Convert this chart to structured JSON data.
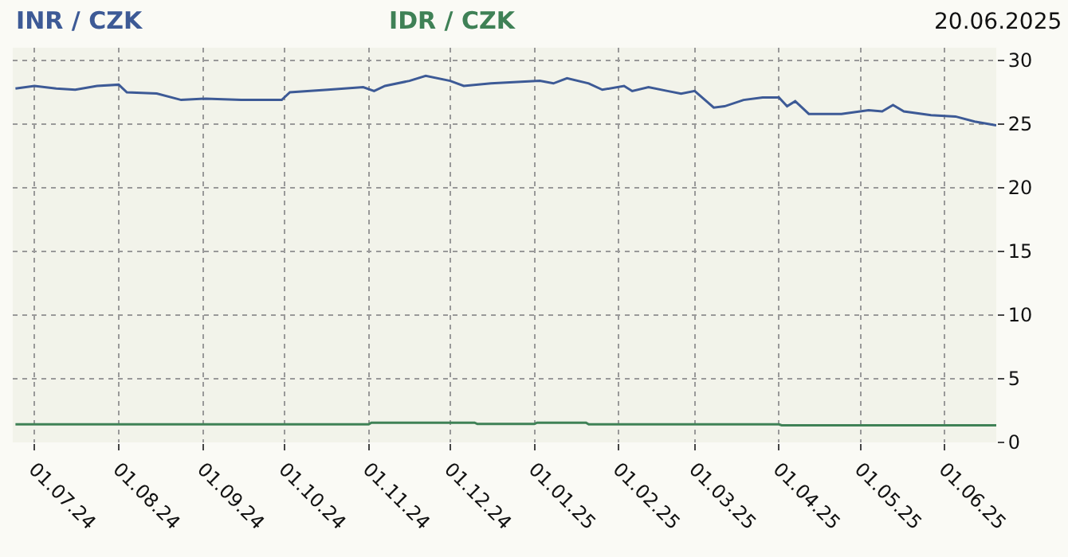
{
  "chart_data": {
    "type": "line",
    "annotations": [
      "20.06.2025"
    ],
    "xlim": [
      "2024-06-23",
      "2025-06-20"
    ],
    "xticks": [
      {
        "value": "2024-07-01",
        "label": "01.07.24"
      },
      {
        "value": "2024-08-01",
        "label": "01.08.24"
      },
      {
        "value": "2024-09-01",
        "label": "01.09.24"
      },
      {
        "value": "2024-10-01",
        "label": "01.10.24"
      },
      {
        "value": "2024-11-01",
        "label": "01.11.24"
      },
      {
        "value": "2024-12-01",
        "label": "01.12.24"
      },
      {
        "value": "2025-01-01",
        "label": "01.01.25"
      },
      {
        "value": "2025-02-01",
        "label": "01.02.25"
      },
      {
        "value": "2025-03-01",
        "label": "01.03.25"
      },
      {
        "value": "2025-04-01",
        "label": "01.04.25"
      },
      {
        "value": "2025-05-01",
        "label": "01.05.25"
      },
      {
        "value": "2025-06-01",
        "label": "01.06.25"
      }
    ],
    "ylim": [
      0,
      31
    ],
    "yticks": [
      0,
      5,
      10,
      15,
      20,
      25,
      30
    ],
    "grid": true,
    "series": [
      {
        "name": "INR / CZK",
        "color": "#3d5a96",
        "x": [
          "2024-06-24",
          "2024-07-01",
          "2024-07-09",
          "2024-07-16",
          "2024-07-24",
          "2024-08-01",
          "2024-08-04",
          "2024-08-15",
          "2024-08-24",
          "2024-09-02",
          "2024-09-15",
          "2024-09-30",
          "2024-10-03",
          "2024-10-17",
          "2024-10-30",
          "2024-11-03",
          "2024-11-07",
          "2024-11-16",
          "2024-11-22",
          "2024-12-01",
          "2024-12-06",
          "2024-12-16",
          "2025-01-03",
          "2025-01-08",
          "2025-01-13",
          "2025-01-21",
          "2025-01-26",
          "2025-02-03",
          "2025-02-06",
          "2025-02-12",
          "2025-02-19",
          "2025-02-24",
          "2025-03-01",
          "2025-03-08",
          "2025-03-12",
          "2025-03-19",
          "2025-03-26",
          "2025-04-01",
          "2025-04-04",
          "2025-04-07",
          "2025-04-12",
          "2025-04-24",
          "2025-05-04",
          "2025-05-09",
          "2025-05-13",
          "2025-05-17",
          "2025-05-27",
          "2025-06-05",
          "2025-06-12",
          "2025-06-20"
        ],
        "values": [
          27.8,
          28.0,
          27.8,
          27.7,
          28.0,
          28.1,
          27.5,
          27.4,
          26.9,
          27.0,
          26.9,
          26.9,
          27.5,
          27.7,
          27.9,
          27.6,
          28.0,
          28.4,
          28.8,
          28.4,
          28.0,
          28.2,
          28.4,
          28.2,
          28.6,
          28.2,
          27.7,
          28.0,
          27.6,
          27.9,
          27.6,
          27.4,
          27.6,
          26.3,
          26.4,
          26.9,
          27.1,
          27.1,
          26.4,
          26.8,
          25.8,
          25.8,
          26.1,
          26.0,
          26.5,
          26.0,
          25.7,
          25.6,
          25.2,
          24.9
        ]
      },
      {
        "name": "IDR / CZK",
        "color": "#3f8156",
        "x": [
          "2024-06-24",
          "2024-11-01",
          "2024-11-02",
          "2024-12-10",
          "2024-12-11",
          "2025-01-01",
          "2025-01-02",
          "2025-01-20",
          "2025-01-21",
          "2025-04-01",
          "2025-04-02",
          "2025-06-20"
        ],
        "values": [
          1.42,
          1.42,
          1.55,
          1.55,
          1.45,
          1.45,
          1.55,
          1.55,
          1.42,
          1.42,
          1.35,
          1.35
        ]
      }
    ]
  }
}
